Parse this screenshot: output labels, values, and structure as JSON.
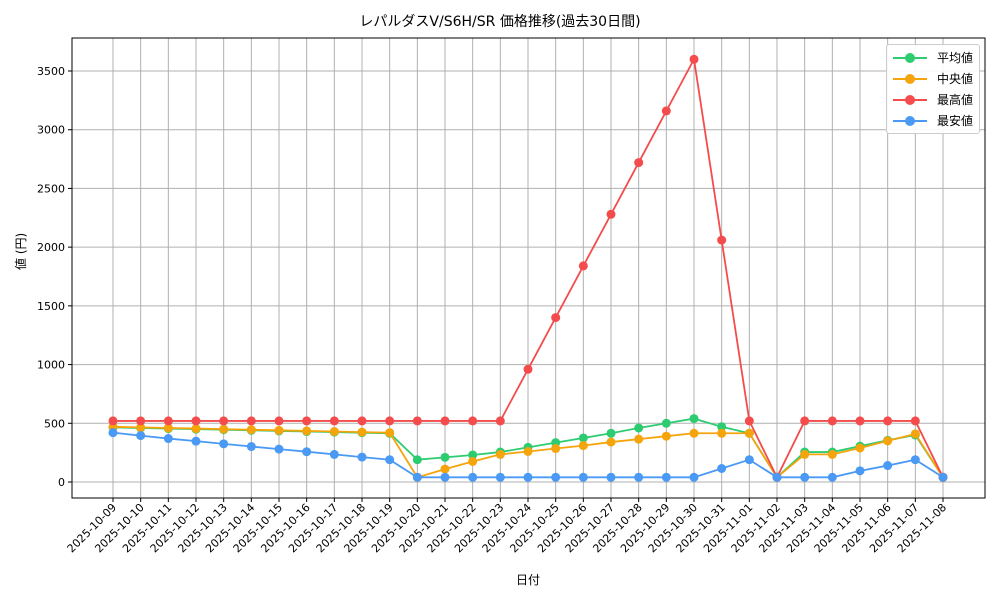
{
  "chart_data": {
    "type": "line",
    "title": "レパルダスV/S6H/SR 価格推移(過去30日間)",
    "xlabel": "日付",
    "ylabel": "値 (円)",
    "ylim": [
      -130,
      3780
    ],
    "yticks": [
      0,
      500,
      1000,
      1500,
      2000,
      2500,
      3000,
      3500
    ],
    "grid": true,
    "legend_position": "upper right",
    "markers": true,
    "categories": [
      "2025-10-09",
      "2025-10-10",
      "2025-10-11",
      "2025-10-12",
      "2025-10-13",
      "2025-10-14",
      "2025-10-15",
      "2025-10-16",
      "2025-10-17",
      "2025-10-18",
      "2025-10-19",
      "2025-10-20",
      "2025-10-21",
      "2025-10-22",
      "2025-10-23",
      "2025-10-24",
      "2025-10-25",
      "2025-10-26",
      "2025-10-27",
      "2025-10-28",
      "2025-10-29",
      "2025-10-30",
      "2025-10-31",
      "2025-11-01",
      "2025-11-02",
      "2025-11-03",
      "2025-11-04",
      "2025-11-05",
      "2025-11-06",
      "2025-11-07",
      "2025-11-08"
    ],
    "series": [
      {
        "name": "平均値",
        "color": "#2ecc71",
        "values": [
          465,
          460,
          455,
          450,
          445,
          440,
          435,
          430,
          425,
          420,
          415,
          190,
          210,
          230,
          255,
          295,
          335,
          375,
          415,
          460,
          500,
          540,
          470,
          415,
          40,
          255,
          255,
          305,
          355,
          400,
          40
        ]
      },
      {
        "name": "中央値",
        "color": "#f5a40c",
        "values": [
          470,
          465,
          460,
          455,
          450,
          445,
          440,
          435,
          430,
          425,
          420,
          40,
          110,
          175,
          235,
          260,
          285,
          310,
          340,
          365,
          390,
          415,
          415,
          415,
          40,
          235,
          235,
          290,
          350,
          410,
          40
        ]
      },
      {
        "name": "最高値",
        "color": "#f44c4c",
        "values": [
          520,
          520,
          520,
          520,
          520,
          520,
          520,
          520,
          520,
          520,
          520,
          520,
          520,
          520,
          520,
          960,
          1400,
          1840,
          2280,
          2720,
          3160,
          3600,
          2060,
          520,
          40,
          520,
          520,
          520,
          520,
          520,
          40
        ]
      },
      {
        "name": "最安値",
        "color": "#4a9af5",
        "values": [
          420,
          395,
          370,
          348,
          325,
          302,
          280,
          258,
          235,
          212,
          190,
          40,
          40,
          40,
          40,
          40,
          40,
          40,
          40,
          40,
          40,
          40,
          115,
          190,
          40,
          40,
          40,
          95,
          140,
          190,
          40
        ]
      }
    ]
  },
  "legend": {
    "items": [
      {
        "label": "平均値",
        "color": "#2ecc71"
      },
      {
        "label": "中央値",
        "color": "#f5a40c"
      },
      {
        "label": "最高値",
        "color": "#f44c4c"
      },
      {
        "label": "最安値",
        "color": "#4a9af5"
      }
    ]
  }
}
